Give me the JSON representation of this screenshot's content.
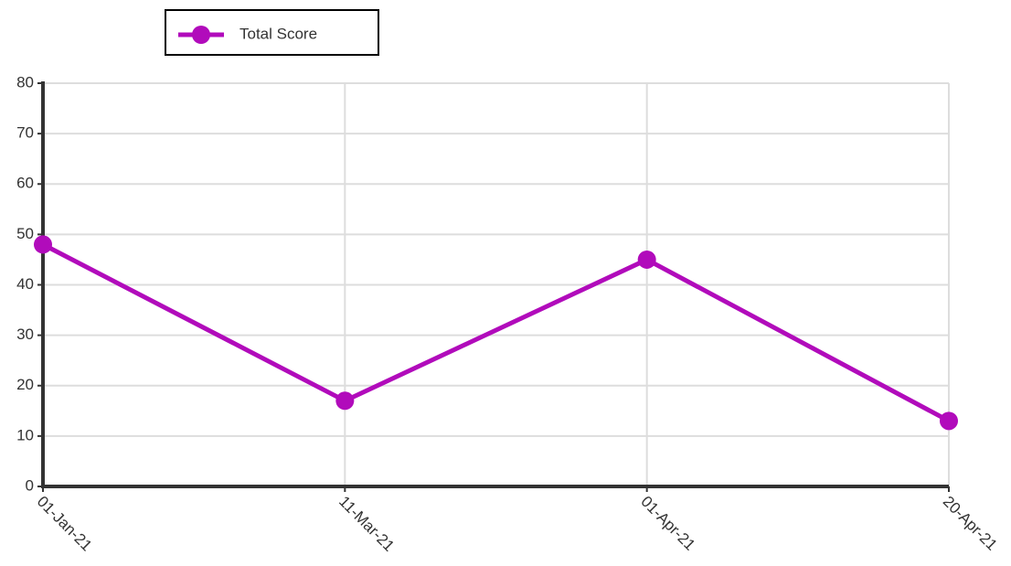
{
  "chart_data": {
    "type": "line",
    "categories": [
      "01-Jan-21",
      "11-Mar-21",
      "01-Apr-21",
      "20-Apr-21"
    ],
    "series": [
      {
        "name": "Total Score",
        "color": "#b10bbb",
        "values": [
          48,
          17,
          45,
          13
        ]
      }
    ],
    "ylim": [
      0,
      80
    ],
    "yticks": [
      0,
      10,
      20,
      30,
      40,
      50,
      60,
      70,
      80
    ],
    "grid": true,
    "legend": "top-left"
  }
}
